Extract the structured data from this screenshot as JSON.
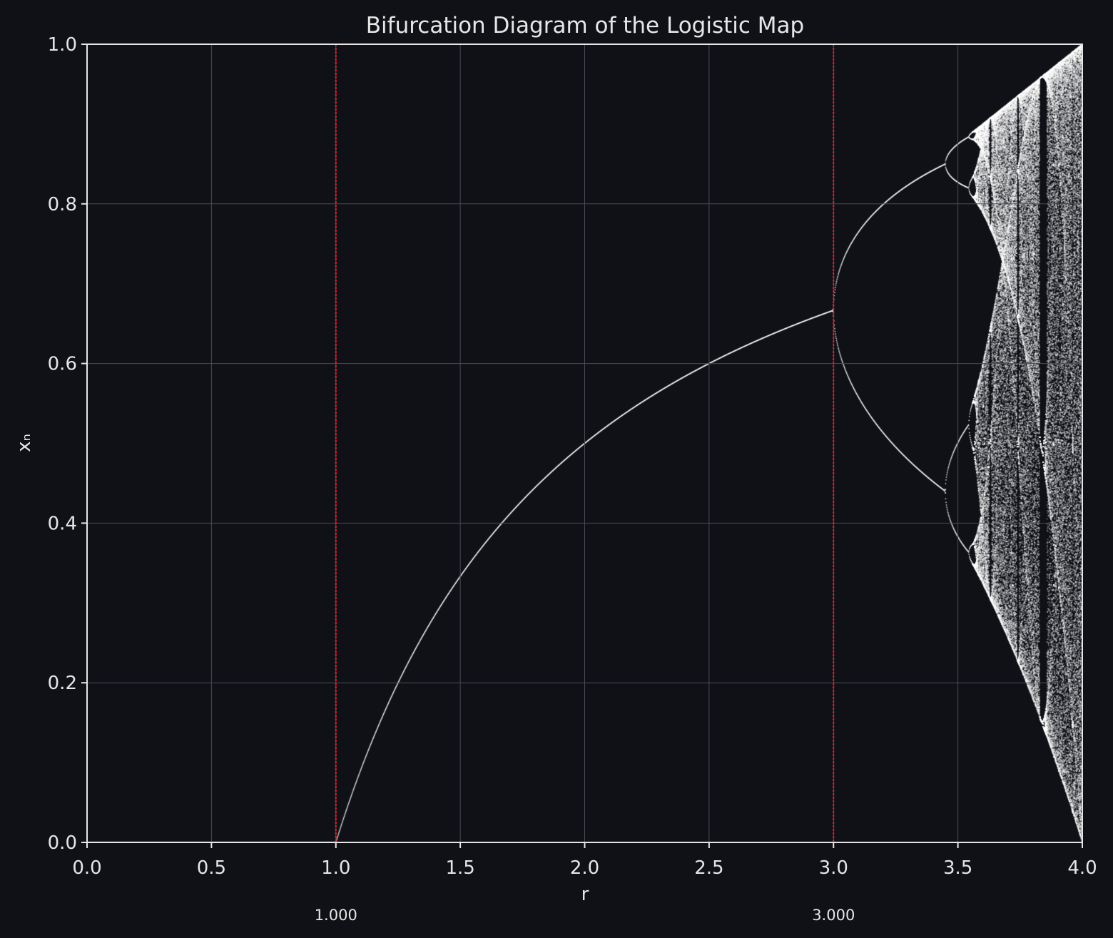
{
  "chart_data": {
    "type": "scatter",
    "title": "Bifurcation Diagram of the Logistic Map",
    "xlabel": "r",
    "ylabel": "xₙ",
    "xlim": [
      0,
      4
    ],
    "ylim": [
      0,
      1
    ],
    "xticks": [
      "0.0",
      "0.5",
      "1.0",
      "1.5",
      "2.0",
      "2.5",
      "3.0",
      "3.5",
      "4.0"
    ],
    "xtick_values": [
      0,
      0.5,
      1,
      1.5,
      2,
      2.5,
      3,
      3.5,
      4
    ],
    "yticks": [
      "0.0",
      "0.2",
      "0.4",
      "0.6",
      "0.8",
      "1.0"
    ],
    "ytick_values": [
      0,
      0.2,
      0.4,
      0.6,
      0.8,
      1.0
    ],
    "grid": true,
    "series": [
      {
        "map": "logistic",
        "r_range": [
          0,
          4
        ],
        "sampled_points": [
          {
            "r": 1.0,
            "x": 0.0
          },
          {
            "r": 1.5,
            "x": 0.333
          },
          {
            "r": 2.0,
            "x": 0.5
          },
          {
            "r": 2.5,
            "x": 0.6
          },
          {
            "r": 3.0,
            "x": 0.667
          },
          {
            "r": 3.25,
            "x": 0.813
          },
          {
            "r": 3.25,
            "x": 0.495
          },
          {
            "r": 3.45,
            "x": 0.852
          },
          {
            "r": 3.45,
            "x": 0.44
          }
        ]
      }
    ],
    "markers": [
      {
        "x": 1.0,
        "label": "1.000"
      },
      {
        "x": 3.0,
        "label": "3.000"
      }
    ],
    "colors": {
      "background": "#0f1117",
      "points": "#ffffff",
      "axes": "#e6e6e6",
      "grid": "#4a4d55",
      "marker_line": "#e0202a"
    }
  }
}
